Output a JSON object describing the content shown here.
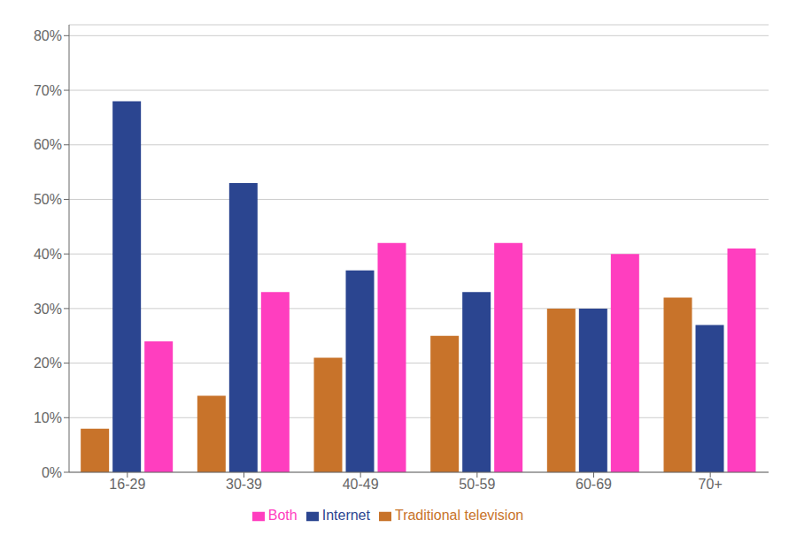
{
  "chart_data": {
    "type": "bar",
    "categories": [
      "16-29",
      "30-39",
      "40-49",
      "50-59",
      "60-69",
      "70+"
    ],
    "series": [
      {
        "name": "Traditional television",
        "color": "#C8732A",
        "values": [
          0.08,
          0.14,
          0.21,
          0.25,
          0.3,
          0.32
        ]
      },
      {
        "name": "Internet",
        "color": "#2B4590",
        "values": [
          0.68,
          0.53,
          0.37,
          0.33,
          0.3,
          0.27
        ]
      },
      {
        "name": "Both",
        "color": "#FF3EBF",
        "values": [
          0.24,
          0.33,
          0.42,
          0.42,
          0.4,
          0.41
        ]
      }
    ],
    "ylim": [
      0,
      0.82
    ],
    "yticks": [
      {
        "value": 0.0,
        "label": "0%"
      },
      {
        "value": 0.1,
        "label": "10%"
      },
      {
        "value": 0.2,
        "label": "20%"
      },
      {
        "value": 0.3,
        "label": "30%"
      },
      {
        "value": 0.4,
        "label": "40%"
      },
      {
        "value": 0.5,
        "label": "50%"
      },
      {
        "value": 0.6,
        "label": "60%"
      },
      {
        "value": 0.7,
        "label": "70%"
      },
      {
        "value": 0.8,
        "label": "80%"
      }
    ],
    "grid": true,
    "legend": "bottom"
  }
}
